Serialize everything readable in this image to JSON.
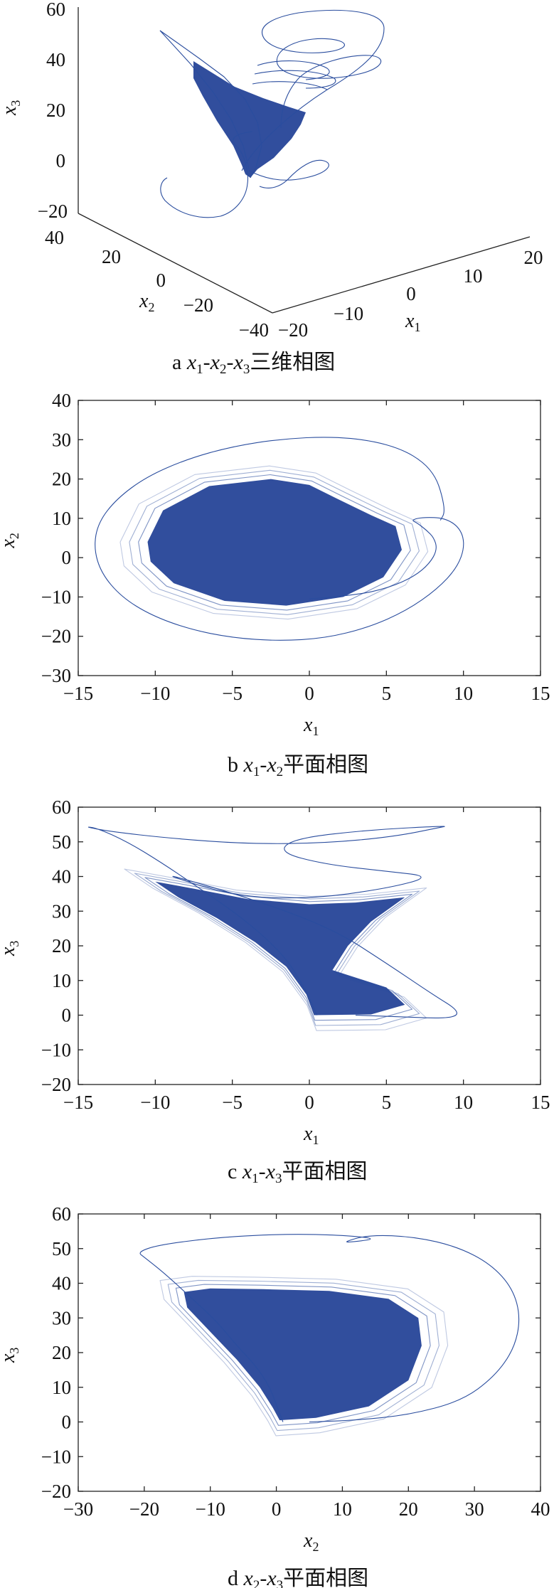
{
  "color_series": "#2a4d9e",
  "chart_data": [
    {
      "id": "a",
      "type": "line",
      "projection": "3d",
      "caption": {
        "prefix": "a",
        "text": "x1-x2-x3三维相图",
        "suffix": "三维相图"
      },
      "xlabel": "x1",
      "ylabel": "x2",
      "zlabel": "x3",
      "xlim": [
        -20,
        20
      ],
      "ylim": [
        -40,
        40
      ],
      "zlim": [
        -20,
        60
      ],
      "x_ticks": [
        "−20",
        "−10",
        "0",
        "10",
        "20"
      ],
      "y_ticks": [
        "40",
        "20",
        "0",
        "−20",
        "−40"
      ],
      "z_ticks": [
        "60",
        "40",
        "20",
        "0",
        "−20"
      ],
      "grid": false
    },
    {
      "id": "b",
      "type": "line",
      "caption": {
        "prefix": "b",
        "text": "x1-x2平面相图",
        "suffix": "平面相图"
      },
      "xlabel": "x1",
      "ylabel": "x2",
      "xlim": [
        -15,
        15
      ],
      "ylim": [
        -30,
        40
      ],
      "x_ticks": [
        -15,
        -10,
        -5,
        0,
        5,
        10,
        15
      ],
      "y_ticks": [
        -30,
        -20,
        -10,
        0,
        10,
        20,
        30,
        40
      ],
      "grid": false,
      "series": [
        {
          "x": [
            0,
            3,
            5.2,
            6.8,
            7.8,
            8.3,
            8.1,
            7.6,
            7.0,
            6.6,
            7.4,
            8.8,
            9.8,
            10.1,
            9.6,
            8.3,
            6.3,
            3.8,
            1.0,
            -2.0,
            -5.0,
            -7.8,
            -10.3,
            -12.2,
            -13.5,
            -14.0,
            -13.7,
            -12.5,
            -10.6,
            -8.0,
            -5.0,
            -1.8,
            1.4,
            4.0,
            6.0,
            7.4,
            8.2,
            8.6,
            8.8,
            8.5
          ],
          "y": [
            -10.5,
            -9.6,
            -7.6,
            -4.8,
            -1.5,
            2.0,
            5.0,
            7.0,
            8.8,
            9.6,
            10.3,
            10.1,
            7.5,
            3.0,
            -2.5,
            -8.0,
            -13.5,
            -17.8,
            -20.5,
            -21.2,
            -20.4,
            -18.2,
            -14.6,
            -10.0,
            -4.0,
            2.5,
            9.0,
            15.0,
            20.5,
            25.0,
            28.3,
            30.2,
            30.8,
            29.8,
            27.6,
            24.3,
            20.5,
            16.0,
            11.5,
            9.5
          ]
        }
      ]
    },
    {
      "id": "c",
      "type": "line",
      "caption": {
        "prefix": "c",
        "text": "x1-x3平面相图",
        "suffix": "平面相图"
      },
      "xlabel": "x1",
      "ylabel": "x3",
      "xlim": [
        -15,
        15
      ],
      "ylim": [
        -20,
        60
      ],
      "x_ticks": [
        -15,
        -10,
        -5,
        0,
        5,
        10,
        15
      ],
      "y_ticks": [
        -20,
        -10,
        0,
        10,
        20,
        30,
        40,
        50,
        60
      ],
      "grid": false,
      "series": [
        {
          "x": [
            0.5,
            0.0,
            -0.6,
            -1.3,
            -2.3,
            -3.8,
            -5.6,
            -7.6,
            -9.6,
            -11.8,
            -13.8,
            -14.6,
            -13.0,
            -9.0,
            -4.0,
            1.0,
            5.5,
            8.5,
            9.0,
            4.0,
            -1.0,
            -2.0,
            1.0,
            5.0,
            8.0,
            5.0,
            0.0,
            -5.0,
            -10.3,
            -4.0,
            1.5,
            5.0,
            8.0,
            9.8,
            9.2,
            6.0,
            3.0
          ],
          "y": [
            0.0,
            5.0,
            10.0,
            15.0,
            20.0,
            26.0,
            32.0,
            38.0,
            44.0,
            50.0,
            54.0,
            54.4,
            53.0,
            51.0,
            49.4,
            49.6,
            51.5,
            54.2,
            54.6,
            53.5,
            51.0,
            47.0,
            43.5,
            41.5,
            40.0,
            36.5,
            33.5,
            34.3,
            42.0,
            34.0,
            25.0,
            15.0,
            6.0,
            1.0,
            -1.0,
            -0.5,
            0.0
          ]
        }
      ]
    },
    {
      "id": "d",
      "type": "line",
      "caption": {
        "prefix": "d",
        "text": "x2-x3平面相图",
        "suffix": "平面相图"
      },
      "xlabel": "x2",
      "ylabel": "x3",
      "xlim": [
        -30,
        40
      ],
      "ylim": [
        -20,
        60
      ],
      "x_ticks": [
        -30,
        -20,
        -10,
        0,
        10,
        20,
        30,
        40
      ],
      "y_ticks": [
        -20,
        -10,
        0,
        10,
        20,
        30,
        40,
        50,
        60
      ],
      "grid": false,
      "series": [
        {
          "x": [
            1,
            0,
            -1,
            -3,
            -6,
            -9,
            -13,
            -17,
            -20,
            -21,
            -18,
            -10,
            -2,
            5,
            12,
            15,
            12,
            10,
            14,
            21,
            27.5,
            32.5,
            35.8,
            37.0,
            36.0,
            33.0,
            28.0,
            20.0,
            12.0,
            5.0
          ],
          "y": [
            0,
            5,
            10,
            16,
            22,
            29,
            36,
            43,
            47.5,
            49.0,
            51.0,
            53.0,
            54.0,
            54.2,
            53.6,
            52.8,
            52.0,
            51.8,
            54.0,
            53.4,
            50.5,
            45.5,
            38.5,
            30.0,
            21.0,
            13.0,
            6.0,
            2.0,
            0.5,
            0.0
          ]
        }
      ]
    }
  ]
}
